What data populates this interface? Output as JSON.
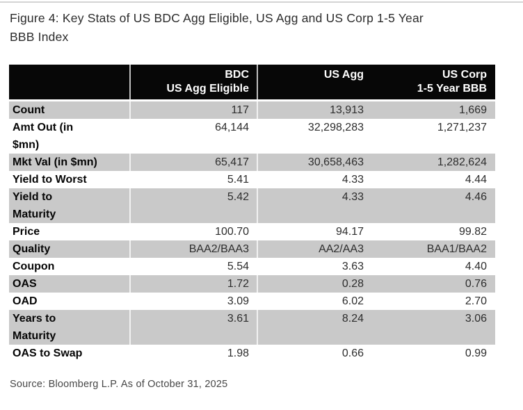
{
  "title": "Figure 4: Key Stats of US BDC Agg Eligible, US Agg and US Corp 1-5 Year\nBBB Index",
  "source": "Source: Bloomberg L.P. As of October 31, 2025",
  "colors": {
    "header_background": "#070707",
    "header_text": "#ffffff",
    "shaded_row_background": "#c9c9c9",
    "body_text": "#2d2d2d",
    "divider_line": "#d4d4d4"
  },
  "table": {
    "columns": [
      "",
      "BDC\nUS Agg Eligible",
      "US Agg",
      "US Corp\n1-5 Year BBB"
    ],
    "rows": [
      {
        "label": "Count",
        "values": [
          "117",
          "13,913",
          "1,669"
        ],
        "shaded": true
      },
      {
        "label": "Amt Out (in\n$mn)",
        "values": [
          "64,144",
          "32,298,283",
          "1,271,237"
        ],
        "shaded": false
      },
      {
        "label": "Mkt Val (in $mn)",
        "values": [
          "65,417",
          "30,658,463",
          "1,282,624"
        ],
        "shaded": true
      },
      {
        "label": "Yield to Worst",
        "values": [
          "5.41",
          "4.33",
          "4.44"
        ],
        "shaded": false
      },
      {
        "label": "Yield to\nMaturity",
        "values": [
          "5.42",
          "4.33",
          "4.46"
        ],
        "shaded": true
      },
      {
        "label": "Price",
        "values": [
          "100.70",
          "94.17",
          "99.82"
        ],
        "shaded": false
      },
      {
        "label": "Quality",
        "values": [
          "BAA2/BAA3",
          "AA2/AA3",
          "BAA1/BAA2"
        ],
        "shaded": true
      },
      {
        "label": "Coupon",
        "values": [
          "5.54",
          "3.63",
          "4.40"
        ],
        "shaded": false
      },
      {
        "label": "OAS",
        "values": [
          "1.72",
          "0.28",
          "0.76"
        ],
        "shaded": true
      },
      {
        "label": "OAD",
        "values": [
          "3.09",
          "6.02",
          "2.70"
        ],
        "shaded": false
      },
      {
        "label": "Years to\nMaturity",
        "values": [
          "3.61",
          "8.24",
          "3.06"
        ],
        "shaded": true
      },
      {
        "label": "OAS to Swap",
        "values": [
          "1.98",
          "0.66",
          "0.99"
        ],
        "shaded": false
      }
    ]
  }
}
